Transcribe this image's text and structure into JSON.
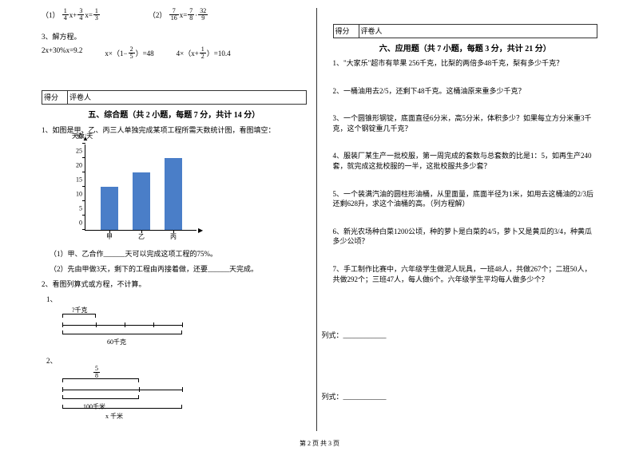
{
  "leftCol": {
    "eq1_prefix": "（1）",
    "eq1_f1n": "1",
    "eq1_f1d": "4",
    "eq1_mid1": "x+",
    "eq1_f2n": "3",
    "eq1_f2d": "4",
    "eq1_mid2": "x=",
    "eq1_f3n": "1",
    "eq1_f3d": "3",
    "eq2_prefix": "（2）",
    "eq2_f1n": "7",
    "eq2_f1d": "16",
    "eq2_mid": "x=",
    "eq2_f2n": "7",
    "eq2_f2d": "8",
    "eq2_dot": "·",
    "eq2_f3n": "32",
    "eq2_f3d": "9",
    "q3": "3、解方程。",
    "eq3a": "2x+30%x=9.2",
    "eq3b_pre": "x×（1−",
    "eq3b_fn": "2",
    "eq3b_fd": "5",
    "eq3b_post": "）=48",
    "eq3c_pre": "4×（x+",
    "eq3c_fn": "1",
    "eq3c_fd": "2",
    "eq3c_post": "）=10.4",
    "scorebox_l": "得分",
    "scorebox_r": "评卷人",
    "section5": "五、综合题（共 2 小题，每题 7 分，共计 14 分）",
    "q5_1": "1、如图是甲、乙、丙三人单独完成某项工程所需天数统计图，看图填空：",
    "chart": {
      "y_title": "天数/天",
      "y_ticks": [
        0,
        5,
        10,
        15,
        20,
        25,
        30
      ],
      "x_labels": [
        "甲",
        "乙",
        "丙"
      ],
      "values": [
        15,
        20,
        25
      ],
      "bar_color": "#4a7ec8",
      "y_max": 30
    },
    "q5_1a": "（1）甲、乙合作______天可以完成这项工程的75%。",
    "q5_1b": "（2）先由甲做3天，剩下的工程由丙接着做，还要______天完成。",
    "q5_2": "2、看图列算式或方程，不计算。",
    "sub1": "1、",
    "diag1": {
      "seg_label": "?千克",
      "total_label": "60千克",
      "list": "列式：____________"
    },
    "sub2": "2、",
    "diag2": {
      "frac_n": "5",
      "frac_d": "8",
      "total_label": "100千米",
      "x_label": "x 千米",
      "list": "列式：____________"
    }
  },
  "rightCol": {
    "scorebox_l": "得分",
    "scorebox_r": "评卷人",
    "section6": "六、应用题（共 7 小题，每题 3 分，共计 21 分）",
    "q1": "1、\"大家乐\"超市有苹果 256千克，比梨的两倍多48千克，梨有多少千克？",
    "q2": "2、一桶油用去2/5，还剩下48千克。这桶油原来重多少千克？",
    "q3": "3、一个圆锥形钢锭，底面直径6分米，高5分米，体积多少？如果每立方分米重3千克，这个钢锭重几千克？",
    "q4": "4、服装厂某生产一批校服，第一周完成的套数与总套数的比是1：5，如再生产240套，就完成这批校服的一半，这批校服共多少套？",
    "q5": "5、一个装满汽油的圆柱形油桶，从里面量，底面半径为1米，如用去这桶油的2/3后还剩628升，求这个油桶的高。（列方程解）",
    "q6": "6、新光农场种白菜1200公顷，种的萝卜是白菜的4/5，萝卜又是黄瓜的3/4，种黄瓜多少公顷？",
    "q7": "7、手工制作比赛中，六年级学生做泥人玩具，一班48人，共做267个；二班50人，共做292个；三班47人，每人做6个。六年级学生平均每人做多少个？"
  },
  "footer": "第 2 页 共 3 页"
}
